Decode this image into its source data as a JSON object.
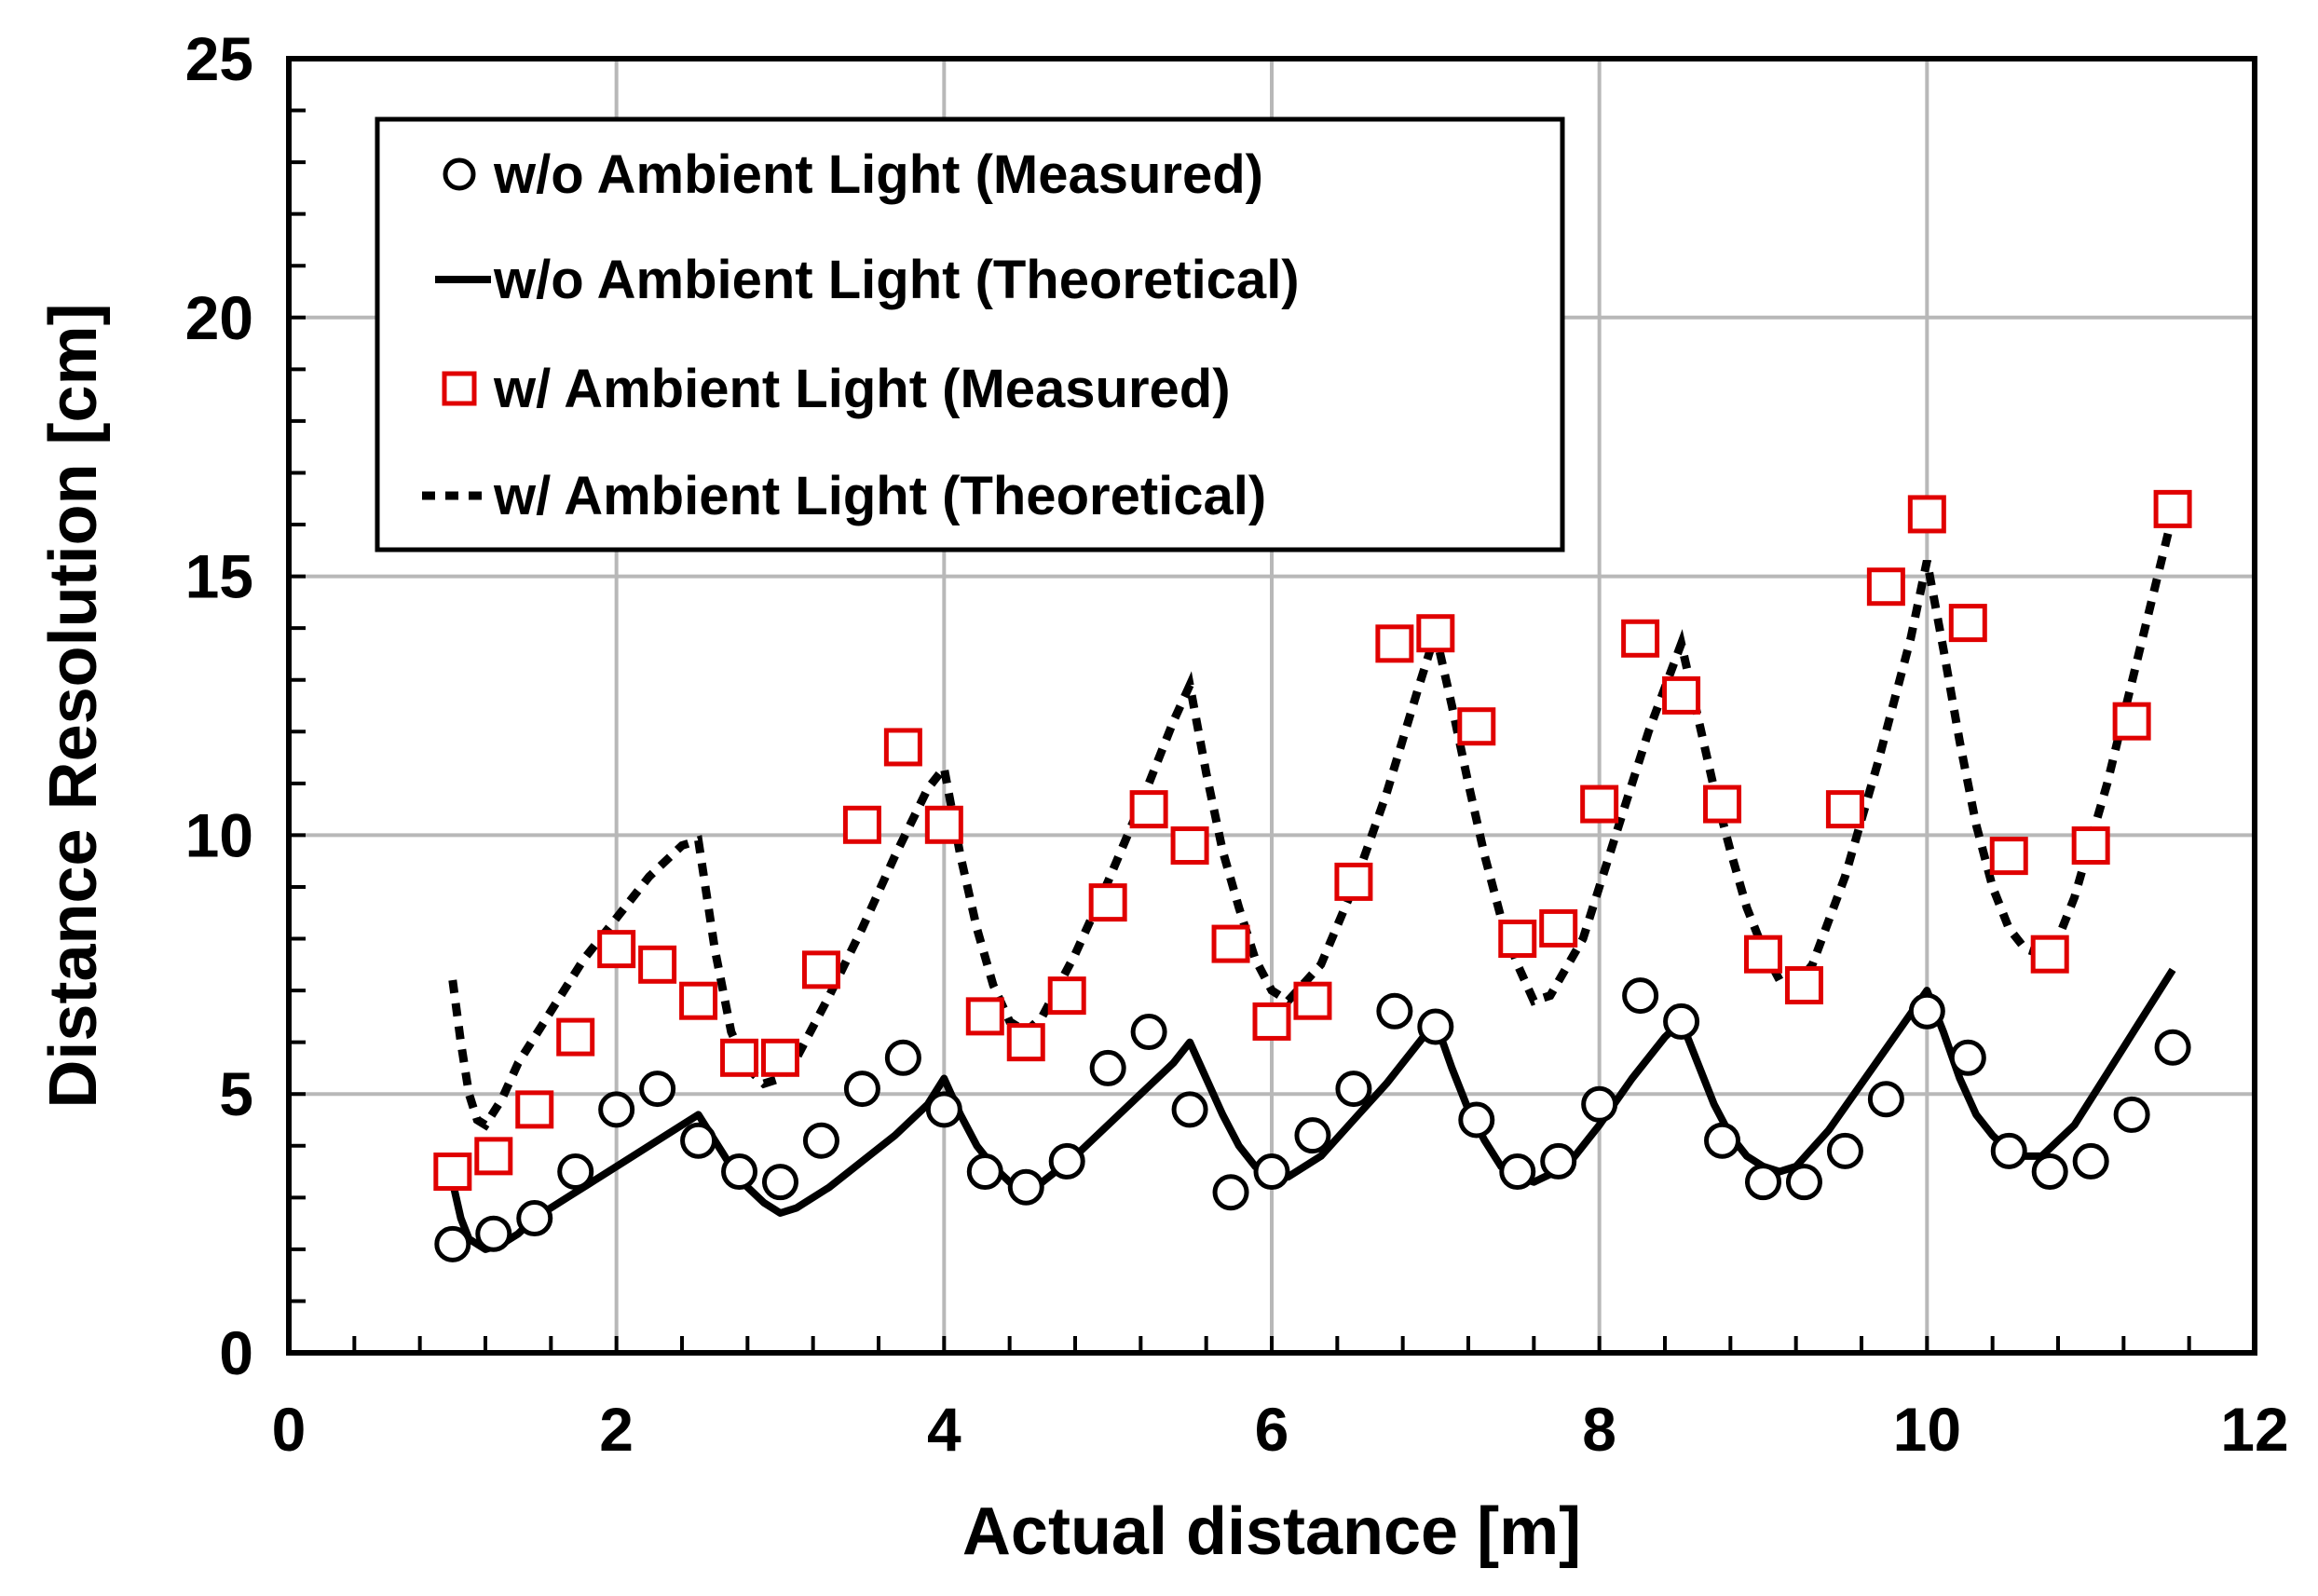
{
  "chart_data": {
    "type": "scatter",
    "title": "",
    "xlabel": "Actual distance [m]",
    "ylabel": "Distance Resolution [cm]",
    "xlim": [
      0,
      12
    ],
    "ylim": [
      0,
      25
    ],
    "x_ticks": [
      "0",
      "2",
      "4",
      "6",
      "8",
      "10",
      "12"
    ],
    "y_ticks": [
      "0",
      "5",
      "10",
      "15",
      "20",
      "25"
    ],
    "grid": true,
    "legend_position": "top-left",
    "colors": {
      "measured_wo": "#000000",
      "measured_w": "#e00000",
      "theory": "#000000"
    },
    "series": [
      {
        "name": "w/o Ambient Light (Measured)",
        "kind": "markers-circle",
        "x": [
          1.0,
          1.25,
          1.5,
          1.75,
          2.0,
          2.25,
          2.5,
          2.75,
          3.0,
          3.25,
          3.5,
          3.75,
          4.0,
          4.25,
          4.5,
          4.75,
          5.0,
          5.25,
          5.5,
          5.75,
          6.0,
          6.25,
          6.5,
          6.75,
          7.0,
          7.25,
          7.5,
          7.75,
          8.0,
          8.25,
          8.5,
          8.75,
          9.0,
          9.25,
          9.5,
          9.75,
          10.0,
          10.25,
          10.5,
          10.75,
          11.0,
          11.25,
          11.5
        ],
        "y": [
          2.1,
          2.3,
          2.6,
          3.5,
          4.7,
          5.1,
          4.1,
          3.5,
          3.3,
          4.1,
          5.1,
          5.7,
          4.7,
          3.5,
          3.2,
          3.7,
          5.5,
          6.2,
          4.7,
          3.1,
          3.5,
          4.2,
          5.1,
          6.6,
          6.3,
          4.5,
          3.5,
          3.7,
          4.8,
          6.9,
          6.4,
          4.1,
          3.3,
          3.3,
          3.9,
          4.9,
          6.6,
          5.7,
          3.9,
          3.5,
          3.7,
          4.6,
          5.9
        ]
      },
      {
        "name": "w/o Ambient Light (Theoretical)",
        "kind": "line-solid",
        "x": [
          1.0,
          1.05,
          1.1,
          1.2,
          1.3,
          1.4,
          1.5,
          1.7,
          1.9,
          2.1,
          2.3,
          2.5,
          2.6,
          2.7,
          2.8,
          2.9,
          3.0,
          3.1,
          3.3,
          3.5,
          3.7,
          3.9,
          4.0,
          4.1,
          4.2,
          4.3,
          4.4,
          4.5,
          4.6,
          4.8,
          5.0,
          5.2,
          5.4,
          5.5,
          5.6,
          5.7,
          5.8,
          5.9,
          6.0,
          6.1,
          6.3,
          6.5,
          6.7,
          6.9,
          7.0,
          7.1,
          7.2,
          7.3,
          7.4,
          7.5,
          7.6,
          7.8,
          8.0,
          8.2,
          8.4,
          8.5,
          8.6,
          8.7,
          8.8,
          8.9,
          9.0,
          9.1,
          9.2,
          9.4,
          9.6,
          9.8,
          10.0,
          10.1,
          10.2,
          10.3,
          10.4,
          10.5,
          10.6,
          10.7,
          10.9,
          11.1,
          11.3,
          11.5
        ],
        "y": [
          3.3,
          2.6,
          2.2,
          2.0,
          2.1,
          2.3,
          2.6,
          3.0,
          3.4,
          3.8,
          4.2,
          4.6,
          4.1,
          3.6,
          3.2,
          2.9,
          2.7,
          2.8,
          3.2,
          3.7,
          4.2,
          4.8,
          5.3,
          4.6,
          4.0,
          3.6,
          3.3,
          3.2,
          3.3,
          3.8,
          4.4,
          5.0,
          5.6,
          6.0,
          5.3,
          4.6,
          4.0,
          3.6,
          3.4,
          3.4,
          3.8,
          4.5,
          5.2,
          6.0,
          6.4,
          5.5,
          4.7,
          4.1,
          3.6,
          3.4,
          3.3,
          3.6,
          4.4,
          5.3,
          6.1,
          6.4,
          5.6,
          4.8,
          4.2,
          3.8,
          3.6,
          3.5,
          3.6,
          4.3,
          5.2,
          6.1,
          7.0,
          6.2,
          5.3,
          4.6,
          4.2,
          3.9,
          3.8,
          3.8,
          4.4,
          5.4,
          6.4,
          7.4
        ]
      },
      {
        "name": "w/ Ambient Light (Measured)",
        "kind": "markers-square",
        "x": [
          1.0,
          1.25,
          1.5,
          1.75,
          2.0,
          2.25,
          2.5,
          2.75,
          3.0,
          3.25,
          3.5,
          3.75,
          4.0,
          4.25,
          4.5,
          4.75,
          5.0,
          5.25,
          5.5,
          5.75,
          6.0,
          6.25,
          6.5,
          6.75,
          7.0,
          7.25,
          7.5,
          7.75,
          8.0,
          8.25,
          8.5,
          8.75,
          9.0,
          9.25,
          9.5,
          9.75,
          10.0,
          10.25,
          10.5,
          10.75,
          11.0,
          11.25,
          11.5
        ],
        "y": [
          3.5,
          3.8,
          4.7,
          6.1,
          7.8,
          7.5,
          6.8,
          5.7,
          5.7,
          7.4,
          10.2,
          11.7,
          10.2,
          6.5,
          6.0,
          6.9,
          8.7,
          10.5,
          9.8,
          7.9,
          6.4,
          6.8,
          9.1,
          13.7,
          13.9,
          12.1,
          8.0,
          8.2,
          10.6,
          13.8,
          12.7,
          10.6,
          7.7,
          7.1,
          10.5,
          14.8,
          16.2,
          14.1,
          9.6,
          7.7,
          9.8,
          12.2,
          16.3
        ]
      },
      {
        "name": "w/ Ambient Light (Theoretical)",
        "kind": "line-dotted",
        "x": [
          1.0,
          1.05,
          1.1,
          1.15,
          1.2,
          1.3,
          1.4,
          1.6,
          1.8,
          2.0,
          2.2,
          2.4,
          2.5,
          2.6,
          2.7,
          2.8,
          2.9,
          3.0,
          3.1,
          3.3,
          3.5,
          3.7,
          3.9,
          4.0,
          4.1,
          4.2,
          4.3,
          4.4,
          4.5,
          4.6,
          4.8,
          5.0,
          5.2,
          5.4,
          5.5,
          5.6,
          5.7,
          5.8,
          5.9,
          6.0,
          6.1,
          6.3,
          6.5,
          6.7,
          6.9,
          7.0,
          7.1,
          7.2,
          7.3,
          7.4,
          7.5,
          7.6,
          7.7,
          7.9,
          8.1,
          8.3,
          8.5,
          8.6,
          8.7,
          8.8,
          8.9,
          9.0,
          9.1,
          9.2,
          9.3,
          9.5,
          9.7,
          9.9,
          10.0,
          10.1,
          10.2,
          10.3,
          10.4,
          10.5,
          10.6,
          10.7,
          10.8,
          10.9,
          11.1,
          11.3,
          11.5
        ],
        "y": [
          7.2,
          6.0,
          5.0,
          4.5,
          4.4,
          4.9,
          5.6,
          6.6,
          7.6,
          8.4,
          9.2,
          9.8,
          9.9,
          7.8,
          6.2,
          5.5,
          5.2,
          5.3,
          5.7,
          6.9,
          8.2,
          9.6,
          10.9,
          11.3,
          9.6,
          8.2,
          7.1,
          6.4,
          6.2,
          6.5,
          7.7,
          9.1,
          10.6,
          12.2,
          12.9,
          11.2,
          9.7,
          8.6,
          7.6,
          7.0,
          6.8,
          7.5,
          9.0,
          10.8,
          12.9,
          13.9,
          12.5,
          11.0,
          9.6,
          8.4,
          7.5,
          6.8,
          6.9,
          8.0,
          10.0,
          12.0,
          13.7,
          12.3,
          10.9,
          9.7,
          8.6,
          7.8,
          7.2,
          7.1,
          7.5,
          9.2,
          11.4,
          13.8,
          15.3,
          13.6,
          11.8,
          10.2,
          9.0,
          8.2,
          7.8,
          7.7,
          8.0,
          8.8,
          11.0,
          13.6,
          16.2
        ]
      }
    ],
    "legend": [
      "w/o Ambient Light (Measured)",
      "w/o Ambient Light (Theoretical)",
      "w/ Ambient Light (Measured)",
      "w/ Ambient Light (Theoretical)"
    ]
  }
}
